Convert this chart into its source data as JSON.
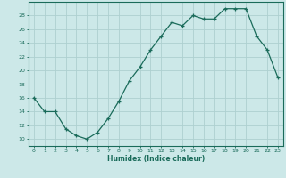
{
  "x": [
    0,
    1,
    2,
    3,
    4,
    5,
    6,
    7,
    8,
    9,
    10,
    11,
    12,
    13,
    14,
    15,
    16,
    17,
    18,
    19,
    20,
    21,
    22,
    23
  ],
  "y": [
    16,
    14,
    14,
    11.5,
    10.5,
    10,
    11,
    13,
    15.5,
    18.5,
    20.5,
    23,
    25,
    27,
    26.5,
    28,
    27.5,
    27.5,
    29,
    29,
    29,
    25,
    23,
    19
  ],
  "xlabel": "Humidex (Indice chaleur)",
  "ylim": [
    9,
    30
  ],
  "xlim": [
    -0.5,
    23.5
  ],
  "yticks": [
    10,
    12,
    14,
    16,
    18,
    20,
    22,
    24,
    26,
    28
  ],
  "xticks": [
    0,
    1,
    2,
    3,
    4,
    5,
    6,
    7,
    8,
    9,
    10,
    11,
    12,
    13,
    14,
    15,
    16,
    17,
    18,
    19,
    20,
    21,
    22,
    23
  ],
  "line_color": "#1a6b5a",
  "marker_color": "#1a6b5a",
  "bg_color": "#cce8e8",
  "grid_color": "#aed0d0",
  "axis_color": "#1a6b5a",
  "label_color": "#1a6b5a"
}
